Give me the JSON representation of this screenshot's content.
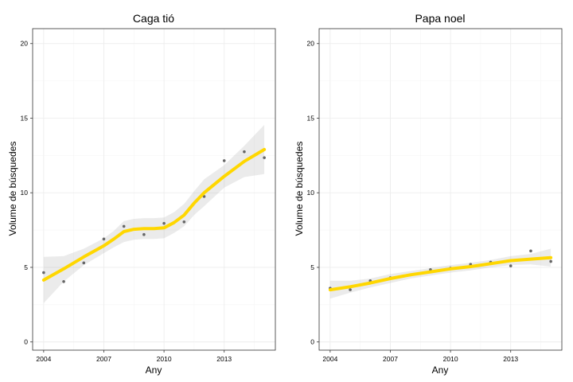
{
  "colors": {
    "smooth_line": "#FFD700",
    "confidence_band": "#999999",
    "points": "#666666",
    "grid": "#ebebeb",
    "panel_border": "#333333"
  },
  "chart_data": [
    {
      "type": "scatter",
      "title": "Caga tió",
      "xlabel": "Any",
      "ylabel": "Volume de búsquedes",
      "x_ticks": [
        2004,
        2007,
        2010,
        2013
      ],
      "y_ticks": [
        0,
        5,
        10,
        15,
        20
      ],
      "xlim": [
        2003.45,
        2015.55
      ],
      "ylim": [
        -0.55,
        21.0
      ],
      "grid": true,
      "points": [
        {
          "x": 2004,
          "y": 4.65
        },
        {
          "x": 2005,
          "y": 4.05
        },
        {
          "x": 2006,
          "y": 5.3
        },
        {
          "x": 2007,
          "y": 6.9
        },
        {
          "x": 2008,
          "y": 7.75
        },
        {
          "x": 2009,
          "y": 7.2
        },
        {
          "x": 2010,
          "y": 7.95
        },
        {
          "x": 2011,
          "y": 8.05
        },
        {
          "x": 2012,
          "y": 9.75
        },
        {
          "x": 2013,
          "y": 12.15
        },
        {
          "x": 2014,
          "y": 12.75
        },
        {
          "x": 2015,
          "y": 12.35
        }
      ],
      "smooth": {
        "x": [
          2004,
          2005,
          2006,
          2007,
          2007.5,
          2008,
          2008.5,
          2009,
          2009.5,
          2010,
          2010.5,
          2011,
          2011.5,
          2012,
          2013,
          2014,
          2015
        ],
        "y": [
          4.15,
          4.9,
          5.7,
          6.45,
          6.9,
          7.4,
          7.55,
          7.6,
          7.6,
          7.65,
          8.0,
          8.5,
          9.3,
          10.0,
          11.1,
          12.1,
          12.9
        ],
        "lower": [
          2.6,
          4.05,
          5.15,
          5.95,
          6.35,
          6.7,
          6.85,
          6.9,
          6.9,
          6.95,
          7.3,
          7.75,
          8.5,
          9.1,
          10.35,
          11.05,
          11.25
        ],
        "upper": [
          5.7,
          5.75,
          6.25,
          6.95,
          7.45,
          8.1,
          8.25,
          8.3,
          8.3,
          8.35,
          8.7,
          9.25,
          10.1,
          10.9,
          11.85,
          13.15,
          14.55
        ]
      }
    },
    {
      "type": "scatter",
      "title": "Papa noel",
      "xlabel": "Any",
      "ylabel": "Volume de búsquedes",
      "x_ticks": [
        2004,
        2007,
        2010,
        2013
      ],
      "y_ticks": [
        0,
        5,
        10,
        15,
        20
      ],
      "xlim": [
        2003.45,
        2015.55
      ],
      "ylim": [
        -0.55,
        21.0
      ],
      "grid": true,
      "points": [
        {
          "x": 2004,
          "y": 3.6
        },
        {
          "x": 2005,
          "y": 3.5
        },
        {
          "x": 2006,
          "y": 4.1
        },
        {
          "x": 2007,
          "y": 4.3
        },
        {
          "x": 2008,
          "y": 4.5
        },
        {
          "x": 2009,
          "y": 4.85
        },
        {
          "x": 2010,
          "y": 4.95
        },
        {
          "x": 2011,
          "y": 5.2
        },
        {
          "x": 2012,
          "y": 5.35
        },
        {
          "x": 2013,
          "y": 5.1
        },
        {
          "x": 2014,
          "y": 6.1
        },
        {
          "x": 2015,
          "y": 5.4
        }
      ],
      "smooth": {
        "x": [
          2004,
          2005,
          2006,
          2007,
          2008,
          2009,
          2010,
          2011,
          2012,
          2013,
          2014,
          2015
        ],
        "y": [
          3.5,
          3.7,
          3.95,
          4.25,
          4.5,
          4.7,
          4.9,
          5.05,
          5.25,
          5.45,
          5.55,
          5.65
        ],
        "lower": [
          2.9,
          3.3,
          3.65,
          3.95,
          4.25,
          4.45,
          4.65,
          4.8,
          5.0,
          5.15,
          5.2,
          5.05
        ],
        "upper": [
          4.1,
          4.1,
          4.25,
          4.55,
          4.75,
          4.95,
          5.15,
          5.3,
          5.5,
          5.75,
          5.9,
          6.25
        ]
      }
    }
  ]
}
